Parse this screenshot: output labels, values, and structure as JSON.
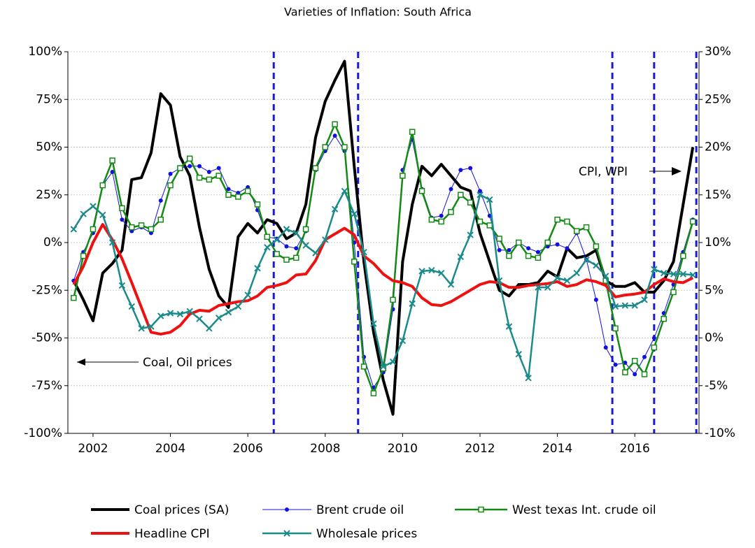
{
  "chart_data": {
    "type": "line",
    "title": "Varieties of Inflation: South Africa",
    "annotations": [
      "Coal, Oil prices",
      "CPI, WPI"
    ],
    "x": [
      2001.5,
      2001.75,
      2002,
      2002.25,
      2002.5,
      2002.75,
      2003,
      2003.25,
      2003.5,
      2003.75,
      2004,
      2004.25,
      2004.5,
      2004.75,
      2005,
      2005.25,
      2005.5,
      2005.75,
      2006,
      2006.25,
      2006.5,
      2006.75,
      2007,
      2007.25,
      2007.5,
      2007.75,
      2008,
      2008.25,
      2008.5,
      2008.75,
      2009,
      2009.25,
      2009.5,
      2009.75,
      2010,
      2010.25,
      2010.5,
      2010.75,
      2011,
      2011.25,
      2011.5,
      2011.75,
      2012,
      2012.25,
      2012.5,
      2012.75,
      2013,
      2013.25,
      2013.5,
      2013.75,
      2014,
      2014.25,
      2014.5,
      2014.75,
      2015,
      2015.25,
      2015.5,
      2015.75,
      2016,
      2016.25,
      2016.5,
      2016.75,
      2017,
      2017.25,
      2017.5
    ],
    "xlim": [
      2001.35,
      2017.66
    ],
    "xticks": [
      2002,
      2004,
      2006,
      2008,
      2010,
      2012,
      2014,
      2016
    ],
    "ylim": [
      -100,
      100
    ],
    "yticks": [
      {
        "value": -100,
        "label": "-100%"
      },
      {
        "value": -75,
        "label": "-75%"
      },
      {
        "value": -50,
        "label": "-50%"
      },
      {
        "value": -25,
        "label": "-25%"
      },
      {
        "value": 0,
        "label": "0%"
      },
      {
        "value": 25,
        "label": "25%"
      },
      {
        "value": 50,
        "label": "50%"
      },
      {
        "value": 75,
        "label": "75%"
      },
      {
        "value": 100,
        "label": "100%"
      }
    ],
    "y2lim": [
      -10,
      30
    ],
    "y2ticks": [
      {
        "value": -10,
        "label": "-10%"
      },
      {
        "value": -5,
        "label": "-5%"
      },
      {
        "value": 0,
        "label": "0%"
      },
      {
        "value": 5,
        "label": "5%"
      },
      {
        "value": 10,
        "label": "10%"
      },
      {
        "value": 15,
        "label": "15%"
      },
      {
        "value": 20,
        "label": "20%"
      },
      {
        "value": 25,
        "label": "25%"
      },
      {
        "value": 30,
        "label": "30%"
      }
    ],
    "grid": true,
    "vlines": [
      2006.67,
      2008.85,
      2015.42,
      2016.5,
      2017.59
    ],
    "vline_color": "#1a1ad6",
    "series": [
      {
        "name": "Coal prices (SA)",
        "color": "#000000",
        "width": 4,
        "marker": "none",
        "axis": "y",
        "values": [
          -20,
          -30,
          -41,
          -16,
          -11,
          -4,
          33,
          34,
          47,
          78,
          72,
          45,
          35,
          8,
          -14,
          -28,
          -34,
          3,
          10,
          5,
          12,
          10,
          2,
          5,
          20,
          55,
          74,
          85,
          95,
          40,
          -10,
          -47,
          -72,
          -90,
          -10,
          20,
          40,
          35,
          41,
          35,
          29,
          27,
          5,
          -10,
          -25,
          -28,
          -22,
          -22,
          -21,
          -15,
          -18,
          -3,
          -8,
          -7,
          -4,
          -20,
          -23,
          -23,
          -21,
          -26,
          -26,
          -20,
          -10,
          20,
          50
        ]
      },
      {
        "name": "Brent crude oil",
        "color": "#1010e0",
        "width": 1,
        "marker": "dot",
        "axis": "y",
        "values": [
          -20,
          -5,
          5,
          30,
          37,
          12,
          6,
          8,
          5,
          22,
          36,
          39,
          40,
          40,
          37,
          39,
          28,
          26,
          29,
          17,
          3,
          2,
          -2,
          -3,
          6,
          38,
          48,
          56,
          48,
          0,
          -60,
          -76,
          -68,
          -35,
          38,
          54,
          28,
          13,
          14,
          28,
          38,
          39,
          27,
          14,
          -4,
          -4,
          0,
          -3,
          -5,
          -2,
          -1,
          -3,
          5,
          -9,
          -30,
          -55,
          -64,
          -63,
          -69,
          -60,
          -50,
          -37,
          -22,
          -5,
          12
        ]
      },
      {
        "name": "West texas Int. crude oil",
        "color": "#138a13",
        "width": 2.5,
        "marker": "square",
        "axis": "y",
        "values": [
          -29,
          -7,
          7,
          30,
          43,
          18,
          8,
          9,
          7,
          12,
          30,
          39,
          44,
          34,
          33,
          35,
          25,
          24,
          27,
          20,
          3,
          -6,
          -9,
          -8,
          7,
          39,
          50,
          62,
          50,
          -10,
          -65,
          -79,
          -66,
          -30,
          35,
          58,
          27,
          12,
          11,
          16,
          25,
          21,
          11,
          9,
          2,
          -7,
          0,
          -7,
          -8,
          0,
          12,
          11,
          6,
          8,
          -2,
          -20,
          -45,
          -68,
          -62,
          -69,
          -55,
          -40,
          -26,
          -7,
          11
        ]
      },
      {
        "name": "Headline CPI",
        "color": "#ee1111",
        "width": 4,
        "marker": "none",
        "axis": "y2",
        "values": [
          5.6,
          7.5,
          10,
          11.9,
          10.3,
          8.3,
          5.8,
          3.2,
          0.6,
          0.4,
          0.6,
          1.3,
          2.5,
          2.9,
          2.8,
          3.4,
          3.6,
          3.8,
          3.9,
          4.4,
          5.3,
          5.5,
          5.8,
          6.6,
          6.7,
          8.1,
          10.3,
          10.9,
          11.5,
          10.8,
          8.6,
          7.8,
          6.7,
          6,
          5.8,
          5.4,
          4.2,
          3.5,
          3.4,
          3.8,
          4.4,
          5,
          5.6,
          5.9,
          5.8,
          5.3,
          5.3,
          5.5,
          5.6,
          5.7,
          5.9,
          5.4,
          5.6,
          6.1,
          5.9,
          5.5,
          4.3,
          4.5,
          4.6,
          4.8,
          5.6,
          6.2,
          5.9,
          5.8,
          6.3
        ]
      },
      {
        "name": "Wholesale prices",
        "color": "#1a8a8a",
        "width": 2.5,
        "marker": "x",
        "axis": "y2",
        "values": [
          11.4,
          13,
          13.8,
          12.9,
          10,
          5.5,
          3.3,
          1,
          1.2,
          2.3,
          2.6,
          2.5,
          2.8,
          2,
          1,
          2.1,
          2.7,
          3.3,
          4.5,
          7.3,
          9.5,
          10.3,
          11.4,
          11,
          9.7,
          8.9,
          10.3,
          13.5,
          15.4,
          13,
          9,
          1.5,
          -3,
          -2.5,
          -0.3,
          3.6,
          7,
          7.1,
          6.8,
          5.6,
          8.5,
          10.8,
          15,
          14.5,
          6,
          1.2,
          -1.7,
          -4.2,
          5.3,
          5.3,
          6.3,
          6,
          6.8,
          8.2,
          7.6,
          6.5,
          3.3,
          3.4,
          3.4,
          4,
          7.2,
          6.8,
          6.7,
          6.7,
          6.6
        ]
      }
    ]
  }
}
